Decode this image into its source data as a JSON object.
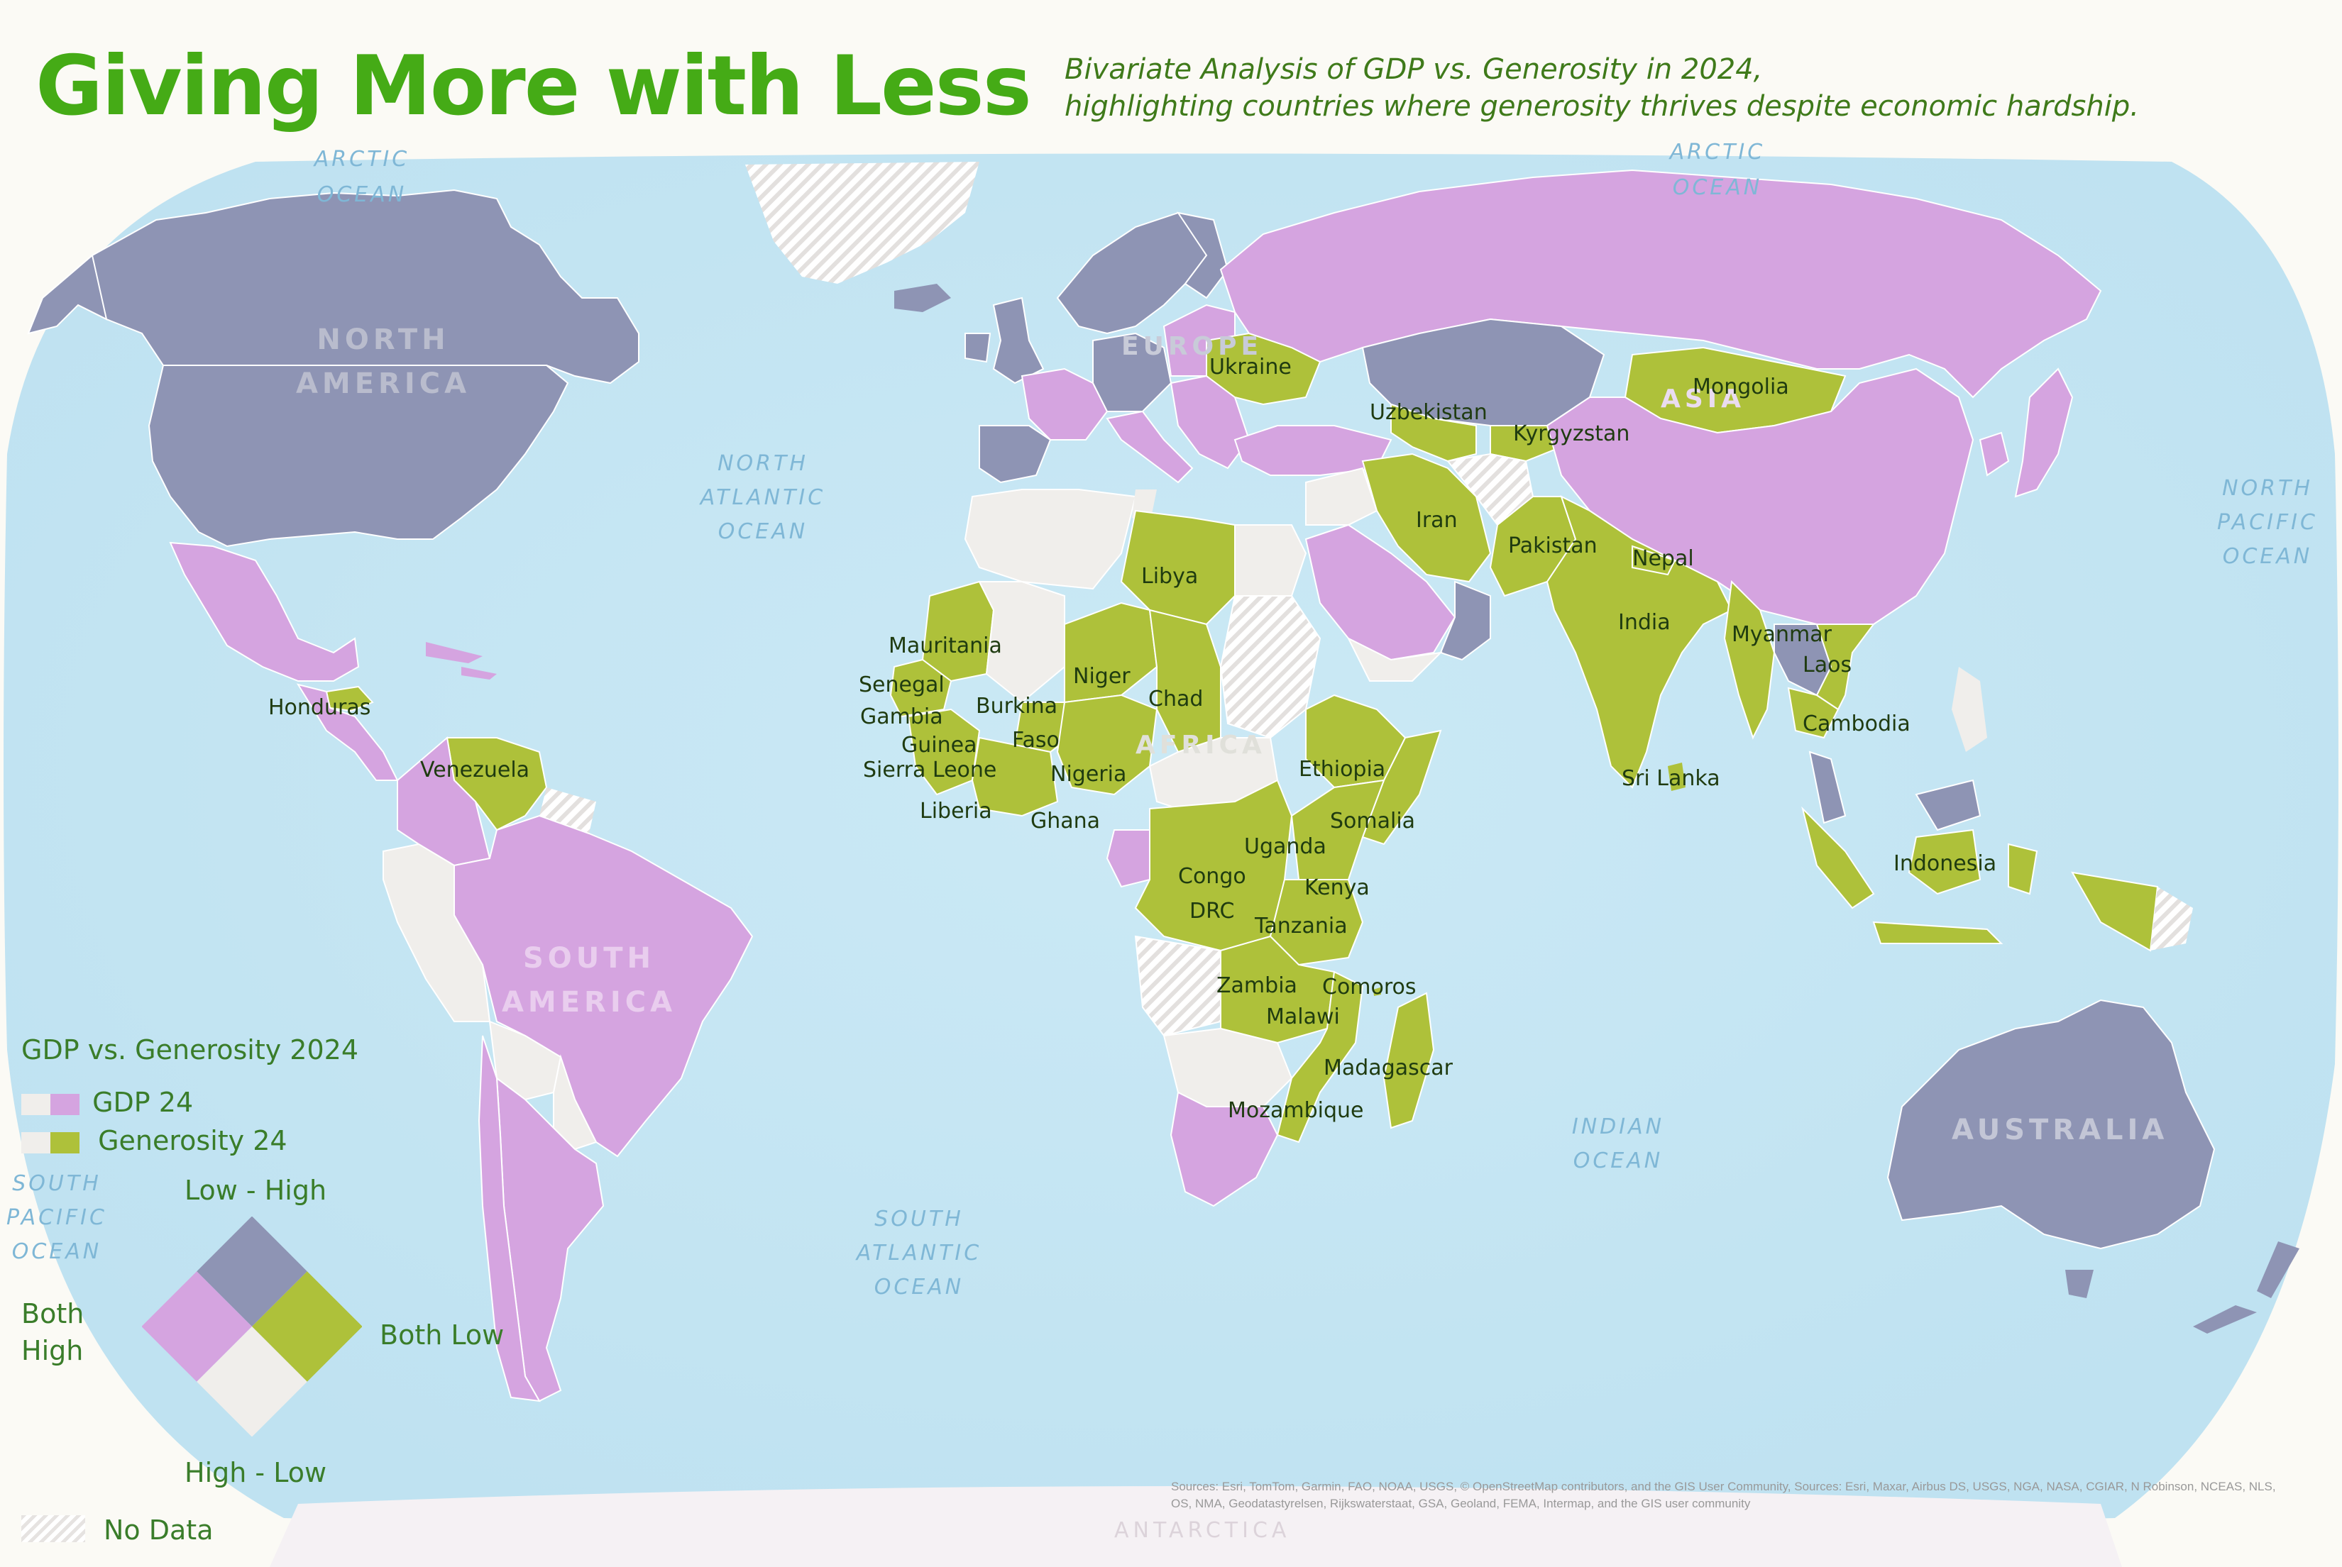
{
  "title": "Giving More with Less",
  "subtitle_line1": "Bivariate Analysis of GDP vs. Generosity in 2024,",
  "subtitle_line2": "highlighting countries where generosity thrives despite economic hardship.",
  "colors": {
    "both_high": "#8e94b4",
    "low_gdp_high_generosity": "#aec13a",
    "high_gdp_low_generosity": "#d5a4e0",
    "both_low": "#f0eeeb",
    "no_data_hatch": "#e3e0de",
    "ocean": "#c5e7f3",
    "title_green": "#45ab16",
    "legend_green": "#3a7d2a"
  },
  "legend": {
    "title": "GDP vs. Generosity 2024",
    "var1": "GDP 24",
    "var2": "Generosity 24",
    "top_label": "Low - High",
    "left_label_line1": "Both",
    "left_label_line2": "High",
    "right_label": "Both Low",
    "bottom_label": "High - Low",
    "no_data": "No Data"
  },
  "oceans": [
    {
      "name": "arctic-ocean-west",
      "line1": "ARCTIC",
      "line2": "OCEAN"
    },
    {
      "name": "arctic-ocean-east",
      "line1": "ARCTIC",
      "line2": "OCEAN"
    },
    {
      "name": "north-atlantic-ocean",
      "line1": "NORTH",
      "line2": "ATLANTIC",
      "line3": "OCEAN"
    },
    {
      "name": "north-pacific-ocean",
      "line1": "NORTH",
      "line2": "PACIFIC",
      "line3": "OCEAN"
    },
    {
      "name": "south-atlantic-ocean",
      "line1": "SOUTH",
      "line2": "ATLANTIC",
      "line3": "OCEAN"
    },
    {
      "name": "south-pacific-ocean",
      "line1": "SOUTH",
      "line2": "PACIFIC",
      "line3": "OCEAN"
    },
    {
      "name": "indian-ocean",
      "line1": "INDIAN",
      "line2": "OCEAN"
    }
  ],
  "continents": {
    "north_america_1": "NORTH",
    "north_america_2": "AMERICA",
    "south_america_1": "SOUTH",
    "south_america_2": "AMERICA",
    "europe": "EUROPE",
    "asia": "ASIA",
    "africa": "AFRICA",
    "australia": "AUSTRALIA",
    "antarctica": "ANTARCTICA"
  },
  "countries": {
    "ukraine": "Ukraine",
    "mongolia": "Mongolia",
    "uzbekistan": "Uzbekistan",
    "kyrgyzstan": "Kyrgyzstan",
    "iran": "Iran",
    "pakistan": "Pakistan",
    "nepal": "Nepal",
    "india": "India",
    "sri_lanka": "Sri Lanka",
    "myanmar": "Myanmar",
    "laos": "Laos",
    "cambodia": "Cambodia",
    "indonesia": "Indonesia",
    "libya": "Libya",
    "mauritania": "Mauritania",
    "senegal": "Senegal",
    "gambia": "Gambia",
    "guinea": "Guinea",
    "sierra_leone": "Sierra Leone",
    "liberia": "Liberia",
    "burkina": "Burkina",
    "faso": "Faso",
    "niger": "Niger",
    "chad": "Chad",
    "nigeria": "Nigeria",
    "ghana": "Ghana",
    "ethiopia": "Ethiopia",
    "somalia": "Somalia",
    "uganda": "Uganda",
    "kenya": "Kenya",
    "congo": "Congo",
    "drc": "DRC",
    "tanzania": "Tanzania",
    "zambia": "Zambia",
    "comoros": "Comoros",
    "malawi": "Malawi",
    "madagascar": "Madagascar",
    "mozambique": "Mozambique",
    "honduras": "Honduras",
    "venezuela": "Venezuela"
  },
  "sources": "Sources: Esri, TomTom, Garmin, FAO, NOAA, USGS, © OpenStreetMap contributors, and the GIS User Community, Sources: Esri, Maxar, Airbus DS, USGS, NGA, NASA, CGIAR, N Robinson, NCEAS, NLS, OS, NMA, Geodatastyrelsen, Rijkswaterstaat, GSA, Geoland, FEMA, Intermap, and the GIS user community"
}
